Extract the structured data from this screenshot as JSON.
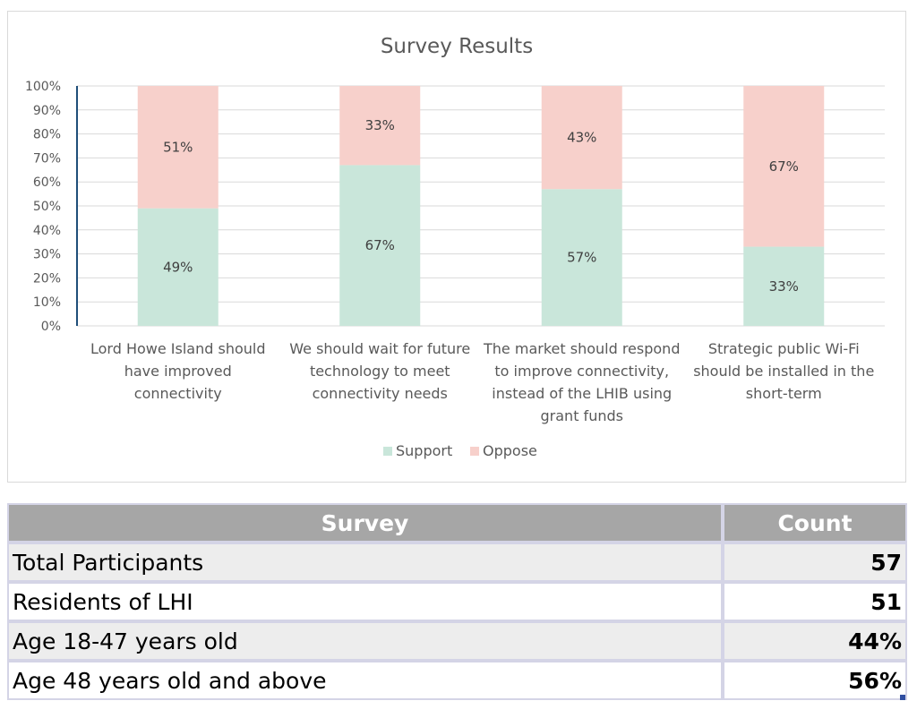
{
  "chart_data": {
    "type": "bar",
    "stacked": true,
    "title": "Survey Results",
    "categories": [
      [
        "Lord Howe Island should",
        "have improved",
        "connectivity"
      ],
      [
        "We should wait for future",
        "technology to meet",
        "connectivity needs"
      ],
      [
        "The market should respond",
        "to improve connectivity,",
        "instead of the LHIB using",
        "grant funds"
      ],
      [
        "Strategic public Wi-Fi",
        "should be installed in the",
        "short-term"
      ]
    ],
    "series": [
      {
        "name": "Support",
        "color": "#c9e6da",
        "values": [
          49,
          67,
          57,
          33
        ],
        "labels": [
          "49%",
          "67%",
          "57%",
          "33%"
        ]
      },
      {
        "name": "Oppose",
        "color": "#f7d0cb",
        "values": [
          51,
          33,
          43,
          67
        ],
        "labels": [
          "51%",
          "33%",
          "43%",
          "67%"
        ]
      }
    ],
    "yticks": [
      "0%",
      "10%",
      "20%",
      "30%",
      "40%",
      "50%",
      "60%",
      "70%",
      "80%",
      "90%",
      "100%"
    ],
    "ylim": [
      0,
      100
    ],
    "grid": true,
    "legend_position": "bottom"
  },
  "table": {
    "headers": [
      "Survey",
      "Count"
    ],
    "rows": [
      {
        "label": "Total Participants",
        "value": "57"
      },
      {
        "label": "Residents of LHI",
        "value": "51"
      },
      {
        "label": "Age 18-47 years old",
        "value": "44%"
      },
      {
        "label": "Age 48 years old and above",
        "value": "56%"
      }
    ],
    "colors": {
      "header_bg": "#a6a6a6",
      "row_alt_bg": "#ededed",
      "border": "#d4d4e6"
    }
  }
}
